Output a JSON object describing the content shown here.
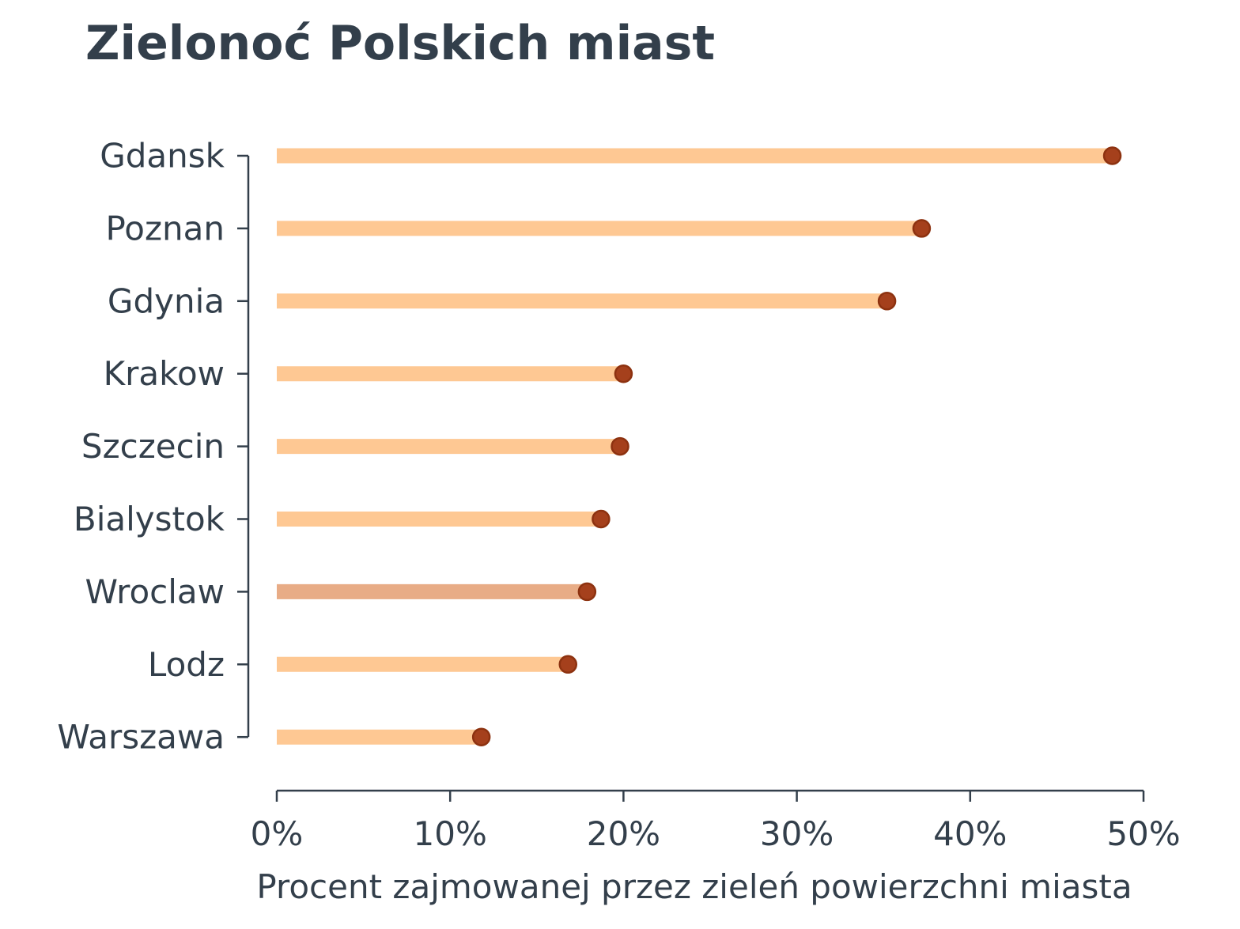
{
  "chart_data": {
    "type": "bar",
    "orientation": "horizontal",
    "style": "lollipop",
    "title": "Zielonoć Polskich miast",
    "xlabel": "Procent zajmowanej przez zieleń powierzchni miasta",
    "ylabel": "",
    "categories": [
      "Gdansk",
      "Poznan",
      "Gdynia",
      "Krakow",
      "Szczecin",
      "Bialystok",
      "Wroclaw",
      "Lodz",
      "Warszawa"
    ],
    "values": [
      48.2,
      37.2,
      35.2,
      20.0,
      19.8,
      18.7,
      17.9,
      16.8,
      11.8
    ],
    "xlim": [
      0,
      50
    ],
    "xticks": [
      0,
      10,
      20,
      30,
      40,
      50
    ],
    "xtick_labels": [
      "0%",
      "10%",
      "20%",
      "30%",
      "40%",
      "50%"
    ],
    "highlight_category": "Wroclaw",
    "grid": false,
    "colors": {
      "bar": "#fec893",
      "bar_highlight": "#e8ac86",
      "dot_fill": "#a5401c",
      "dot_stroke": "#8d3210",
      "text": "#333f4b"
    }
  }
}
